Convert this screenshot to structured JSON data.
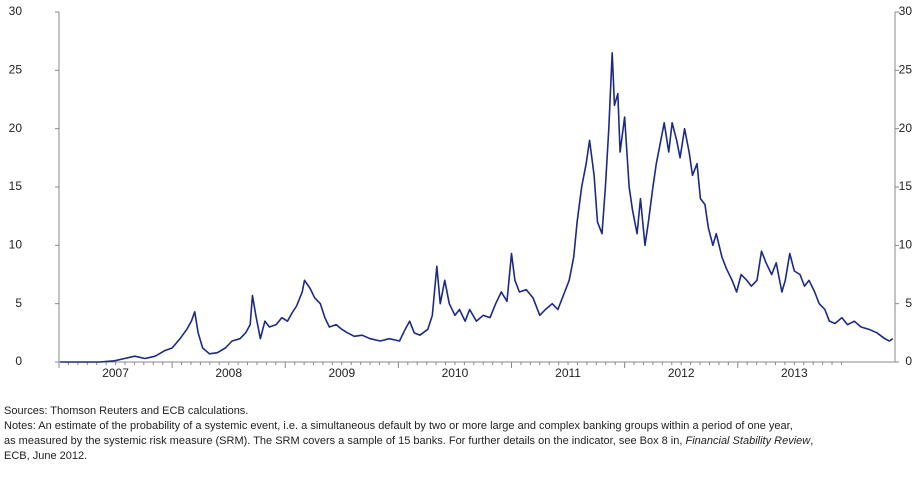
{
  "chart_data": {
    "type": "line",
    "color": "#1c2a85",
    "x": [
      2007.01,
      2007.36,
      2007.49,
      2007.58,
      2007.67,
      2007.76,
      2007.85,
      2007.94,
      2008.0,
      2008.07,
      2008.13,
      2008.17,
      2008.2,
      2008.23,
      2008.27,
      2008.33,
      2008.4,
      2008.47,
      2008.53,
      2008.6,
      2008.65,
      2008.69,
      2008.71,
      2008.74,
      2008.78,
      2008.82,
      2008.86,
      2008.92,
      2008.97,
      2009.02,
      2009.06,
      2009.1,
      2009.15,
      2009.17,
      2009.22,
      2009.26,
      2009.31,
      2009.35,
      2009.39,
      2009.45,
      2009.5,
      2009.55,
      2009.61,
      2009.68,
      2009.75,
      2009.84,
      2009.92,
      2010.01,
      2010.06,
      2010.1,
      2010.14,
      2010.19,
      2010.26,
      2010.3,
      2010.34,
      2010.37,
      2010.41,
      2010.45,
      2010.5,
      2010.54,
      2010.59,
      2010.63,
      2010.69,
      2010.75,
      2010.81,
      2010.86,
      2010.91,
      2010.96,
      2011.0,
      2011.03,
      2011.07,
      2011.13,
      2011.19,
      2011.25,
      2011.3,
      2011.36,
      2011.41,
      2011.47,
      2011.51,
      2011.55,
      2011.58,
      2011.62,
      2011.66,
      2011.69,
      2011.73,
      2011.76,
      2011.8,
      2011.83,
      2011.86,
      2011.89,
      2011.91,
      2011.94,
      2011.96,
      2012.0,
      2012.04,
      2012.07,
      2012.11,
      2012.14,
      2012.18,
      2012.21,
      2012.25,
      2012.28,
      2012.32,
      2012.35,
      2012.39,
      2012.42,
      2012.46,
      2012.49,
      2012.53,
      2012.57,
      2012.6,
      2012.64,
      2012.67,
      2012.71,
      2012.74,
      2012.78,
      2012.81,
      2012.86,
      2012.9,
      2012.95,
      2012.99,
      2013.03,
      2013.08,
      2013.12,
      2013.17,
      2013.21,
      2013.25,
      2013.3,
      2013.34,
      2013.39,
      2013.42,
      2013.46,
      2013.5,
      2013.55,
      2013.59,
      2013.63,
      2013.68,
      2013.72,
      2013.77,
      2013.81,
      2013.86,
      2013.92,
      2013.97,
      2014.03,
      2014.09,
      2014.16,
      2014.23,
      2014.3,
      2014.34,
      2014.37
    ],
    "values": [
      0,
      0,
      0.1,
      0.3,
      0.5,
      0.3,
      0.5,
      1,
      1.2,
      2,
      2.8,
      3.5,
      4.3,
      2.5,
      1.2,
      0.7,
      0.8,
      1.2,
      1.8,
      2,
      2.5,
      3.2,
      5.7,
      4,
      2,
      3.5,
      3,
      3.2,
      3.8,
      3.5,
      4.2,
      4.8,
      6,
      7,
      6.3,
      5.5,
      5,
      3.8,
      3,
      3.2,
      2.8,
      2.5,
      2.2,
      2.3,
      2,
      1.8,
      2,
      1.8,
      2.8,
      3.5,
      2.5,
      2.3,
      2.8,
      4,
      8.2,
      5,
      7,
      5,
      4,
      4.5,
      3.5,
      4.5,
      3.5,
      4,
      3.8,
      5,
      6,
      5.2,
      9.3,
      7,
      6,
      6.2,
      5.5,
      4,
      4.5,
      5,
      4.5,
      6,
      7,
      9,
      12,
      15,
      17,
      19,
      16,
      12,
      11,
      15,
      20,
      26.5,
      22,
      23,
      18,
      21,
      15,
      13,
      11,
      14,
      10,
      12,
      15,
      17,
      19,
      20.5,
      18,
      20.5,
      19,
      17.5,
      20,
      18,
      16,
      17,
      14,
      13.5,
      11.5,
      10,
      11,
      9,
      8,
      7,
      6,
      7.5,
      7,
      6.5,
      7,
      9.5,
      8.5,
      7.5,
      8.5,
      6,
      7,
      9.3,
      7.8,
      7.5,
      6.5,
      7,
      6,
      5,
      4.5,
      3.5,
      3.3,
      3.8,
      3.2,
      3.5,
      3,
      2.8,
      2.5,
      2,
      1.8,
      2
    ],
    "xlim": [
      2007,
      2014.39
    ],
    "xticks": [
      {
        "value": 2007.5,
        "label": "2007"
      },
      {
        "value": 2008.5,
        "label": "2008"
      },
      {
        "value": 2009.5,
        "label": "2009"
      },
      {
        "value": 2010.5,
        "label": "2010"
      },
      {
        "value": 2011.5,
        "label": "2011"
      },
      {
        "value": 2012.5,
        "label": "2012"
      },
      {
        "value": 2013.5,
        "label": "2013"
      }
    ],
    "ylim": [
      0,
      30
    ],
    "yticks": [
      0,
      5,
      10,
      15,
      20,
      25,
      30
    ],
    "grid": false
  },
  "sources": "Sources: Thomson Reuters and ECB calculations.",
  "notes": [
    "Notes: An estimate of the probability of a systemic event, i.e. a simultaneous default by two or more large and complex banking groups within a period of one year,",
    "as measured by the systemic risk measure (SRM). The SRM covers a sample of 15 banks. For further details on the indicator, see Box 8 in,",
    "Financial Stability Review",
    ",",
    "ECB, June 2012."
  ]
}
